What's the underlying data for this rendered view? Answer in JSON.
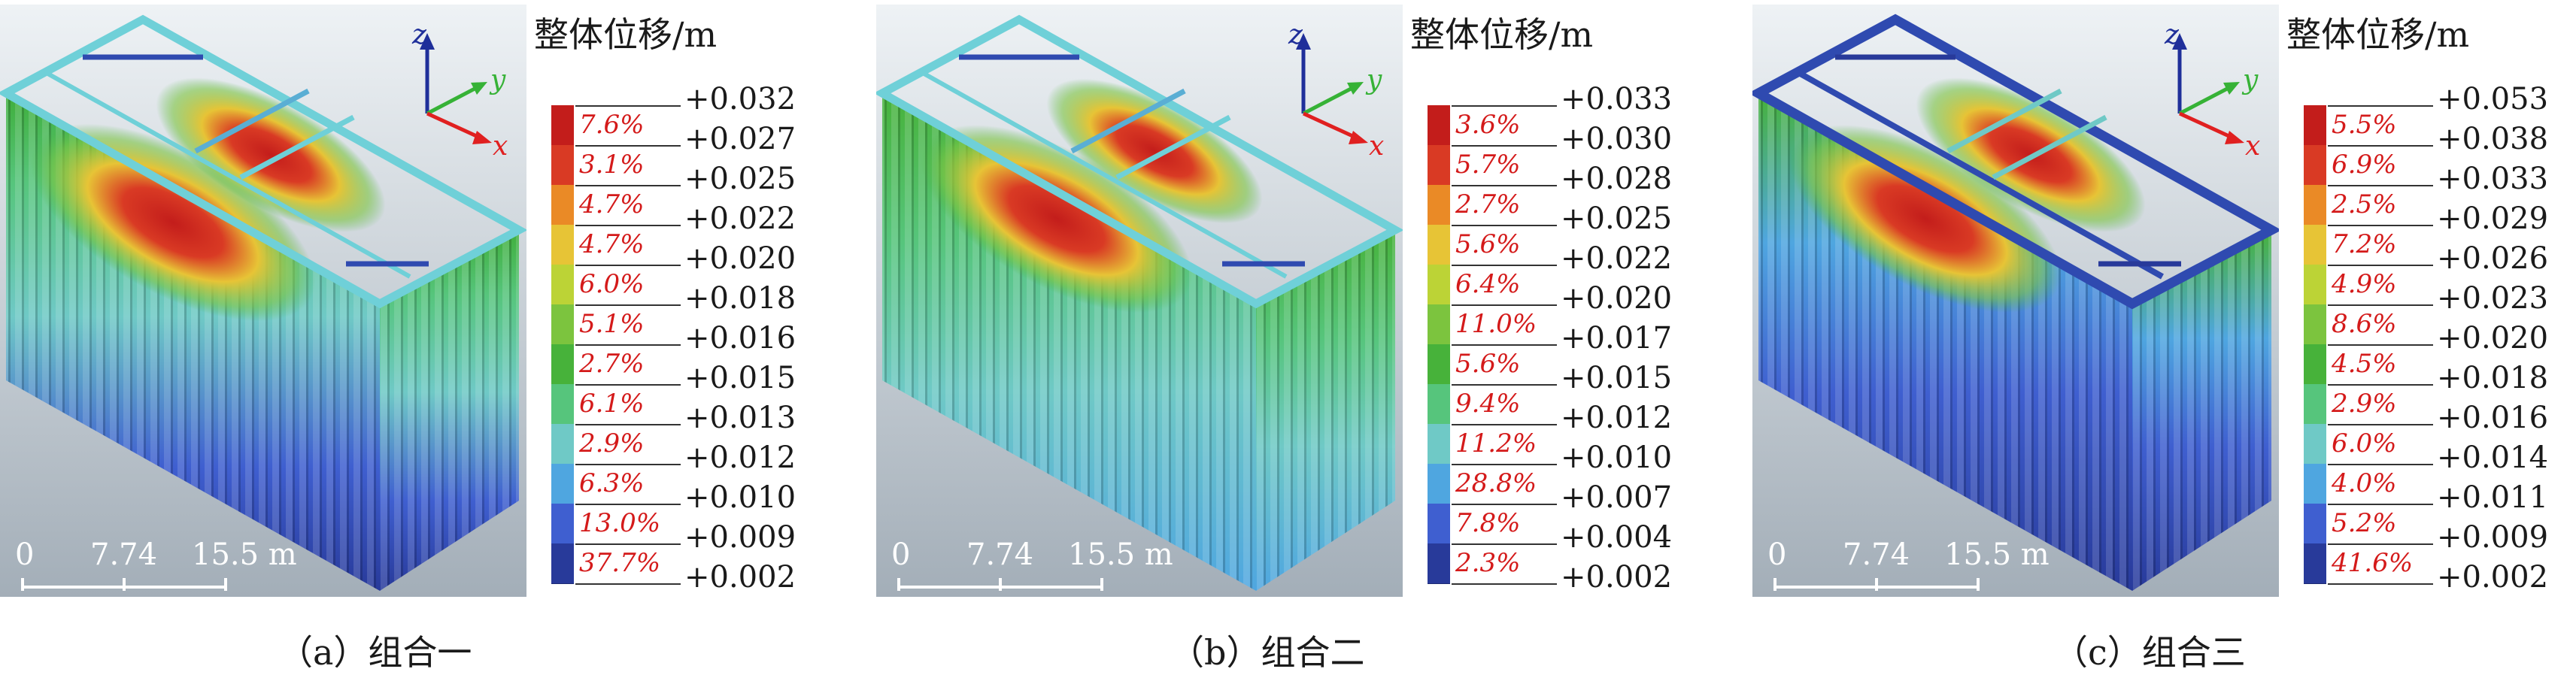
{
  "legend_title": "整体位移/m",
  "axis_labels": {
    "z": "z",
    "y": "y",
    "x": "x"
  },
  "scale_bar": {
    "zero": "0",
    "mid": "7.74",
    "end": "15.5 m"
  },
  "colors": {
    "bands": [
      "#283a9a",
      "#3f5fd0",
      "#4fa6e0",
      "#6fc9c6",
      "#56c57c",
      "#47b23a",
      "#7cc43e",
      "#bcd336",
      "#e7c436",
      "#ea8a26",
      "#d93a24",
      "#c31d1b"
    ],
    "percent_text": "#d41a1a"
  },
  "panels": [
    {
      "caption": "（a）组合一",
      "percentages": [
        "7.6%",
        "3.1%",
        "4.7%",
        "4.7%",
        "6.0%",
        "5.1%",
        "2.7%",
        "6.1%",
        "2.9%",
        "6.3%",
        "13.0%",
        "37.7%"
      ],
      "values": [
        "+0.032",
        "+0.027",
        "+0.025",
        "+0.022",
        "+0.020",
        "+0.018",
        "+0.016",
        "+0.015",
        "+0.013",
        "+0.012",
        "+0.010",
        "+0.009",
        "+0.002"
      ]
    },
    {
      "caption": "（b）组合二",
      "percentages": [
        "3.6%",
        "5.7%",
        "2.7%",
        "5.6%",
        "6.4%",
        "11.0%",
        "5.6%",
        "9.4%",
        "11.2%",
        "28.8%",
        "7.8%",
        "2.3%"
      ],
      "values": [
        "+0.033",
        "+0.030",
        "+0.028",
        "+0.025",
        "+0.022",
        "+0.020",
        "+0.017",
        "+0.015",
        "+0.012",
        "+0.010",
        "+0.007",
        "+0.004",
        "+0.002"
      ]
    },
    {
      "caption": "（c）组合三",
      "percentages": [
        "5.5%",
        "6.9%",
        "2.5%",
        "7.2%",
        "4.9%",
        "8.6%",
        "4.5%",
        "2.9%",
        "6.0%",
        "4.0%",
        "5.2%",
        "41.6%"
      ],
      "values": [
        "+0.053",
        "+0.038",
        "+0.033",
        "+0.029",
        "+0.026",
        "+0.023",
        "+0.020",
        "+0.018",
        "+0.016",
        "+0.014",
        "+0.011",
        "+0.009",
        "+0.002"
      ]
    }
  ]
}
